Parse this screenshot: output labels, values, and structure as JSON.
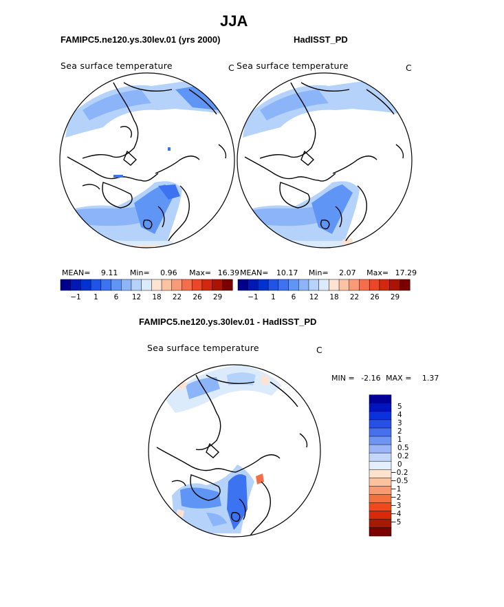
{
  "figure": {
    "title": "JJA"
  },
  "panels": [
    {
      "id": "model",
      "heading": "FAMIPC5.ne120.ys.30lev.01 (yrs 2000)",
      "map_title": "Sea surface temperature",
      "units": "C",
      "stats": {
        "mean_label": "MEAN=",
        "mean": "9.11",
        "min_label": "Min=",
        "min": "0.96",
        "max_label": "Max=",
        "max": "16.39"
      }
    },
    {
      "id": "obs",
      "heading": "HadISST_PD",
      "map_title": "Sea surface temperature",
      "units": "C",
      "stats": {
        "mean_label": "MEAN=",
        "mean": "10.17",
        "min_label": "Min=",
        "min": "2.07",
        "max_label": "Max=",
        "max": "17.29"
      }
    },
    {
      "id": "diff",
      "heading": "FAMIPC5.ne120.ys.30lev.01 - HadISST_PD",
      "map_title": "Sea surface temperature",
      "units": "C",
      "stats": {
        "min_label": "MIN =",
        "min": "-2.16",
        "max_label": "MAX =",
        "max": "1.37"
      }
    }
  ],
  "colorbar_horizontal": {
    "colors": [
      "#00008c",
      "#0019b4",
      "#0032d2",
      "#1e55e6",
      "#3c73f0",
      "#5f96f5",
      "#8cb4f8",
      "#b4d2fa",
      "#dcebfc",
      "#fde3d2",
      "#fcc3a3",
      "#fa9b78",
      "#f56e4b",
      "#eb4628",
      "#d2280f",
      "#aa1400",
      "#780000"
    ],
    "ticks": [
      "−1",
      "1",
      "6",
      "12",
      "18",
      "22",
      "26",
      "29"
    ]
  },
  "colorbar_vertical": {
    "colors": [
      "#000096",
      "#0014be",
      "#0a32dc",
      "#2850e6",
      "#4670ee",
      "#6e94f4",
      "#9ab6f8",
      "#c4d7fb",
      "#e4effd",
      "#fde2cf",
      "#fbc2a0",
      "#f99a72",
      "#f5703f",
      "#ef4a1c",
      "#d82a0a",
      "#a51a05",
      "#7d0000"
    ],
    "labels": [
      "5",
      "4",
      "3",
      "2",
      "1",
      "0.5",
      "0.2",
      "0",
      "−0.2",
      "−0.5",
      "−1",
      "−2",
      "−3",
      "−4",
      "−5"
    ]
  }
}
